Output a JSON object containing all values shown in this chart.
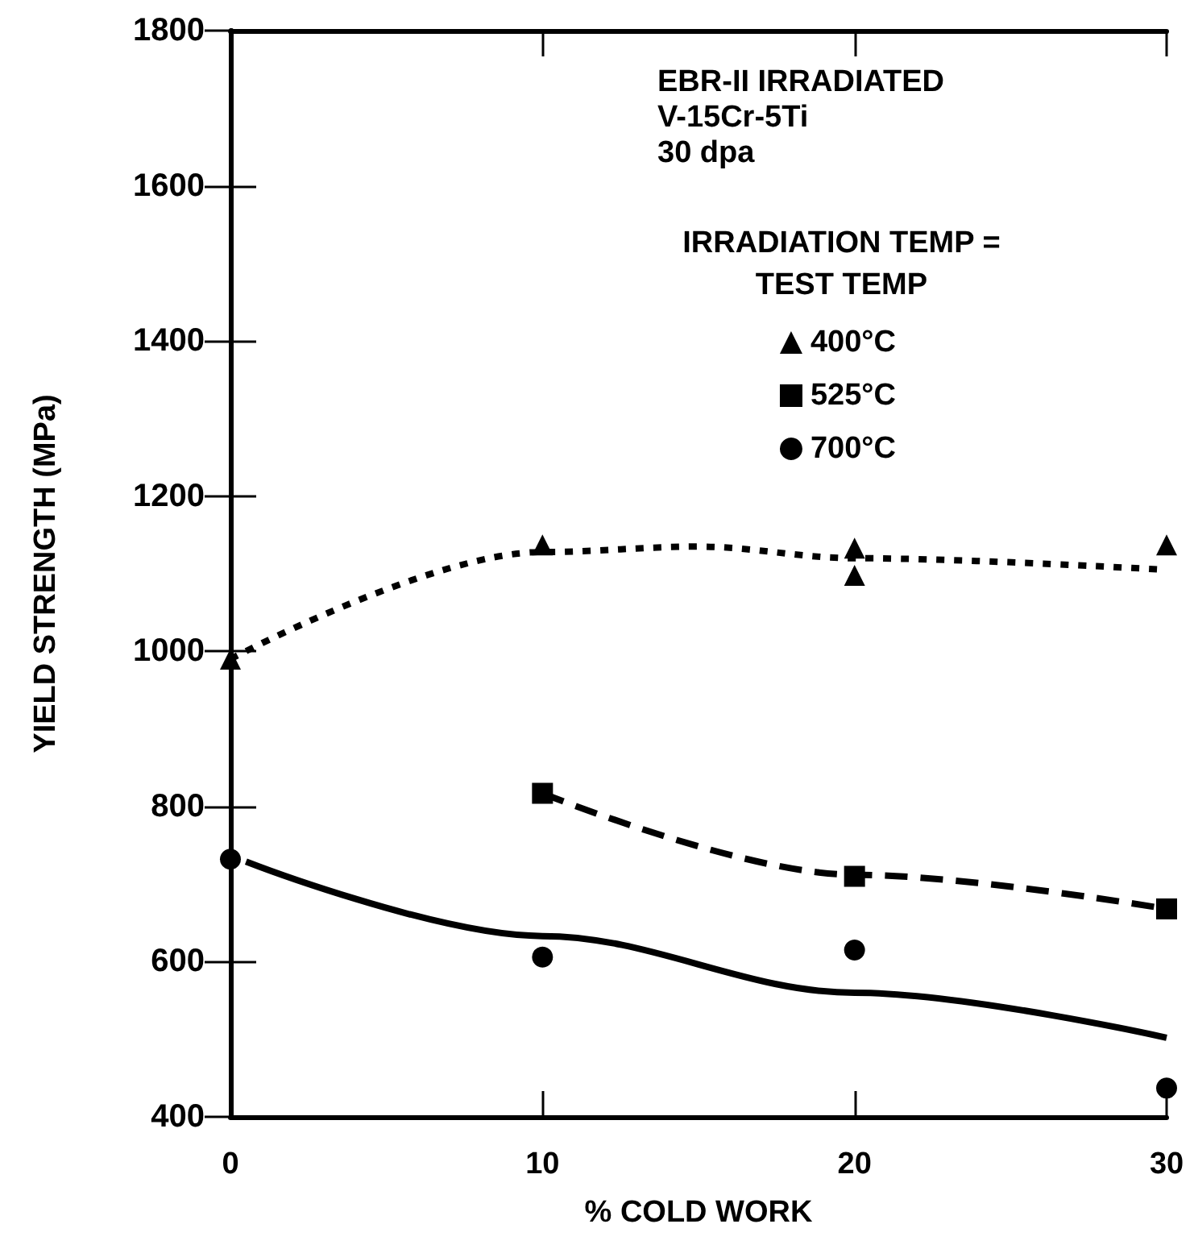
{
  "chart_data": {
    "type": "scatter",
    "xlabel": "% COLD WORK",
    "ylabel": "YIELD STRENGTH (MPa)",
    "legend_title": "IRRADIATION TEMP =\nTEST TEMP",
    "annotations": [
      "EBR-II IRRADIATED\nV-15Cr-5Ti\n30 dpa"
    ],
    "xlim": [
      0,
      30
    ],
    "ylim": [
      400,
      1800
    ],
    "xticks": [
      0,
      10,
      20,
      30
    ],
    "yticks": [
      400,
      600,
      800,
      1000,
      1200,
      1400,
      1600,
      1800
    ],
    "legend": "top right",
    "series": [
      {
        "name": "400°C",
        "marker": "triangle",
        "color": "#000000",
        "x": [
          0,
          10,
          20,
          20,
          30
        ],
        "values": [
          990,
          1137,
          1133,
          1098,
          1137
        ]
      },
      {
        "name": "525°C",
        "marker": "square",
        "color": "#000000",
        "x": [
          10,
          20,
          30
        ],
        "values": [
          817,
          710,
          668
        ]
      },
      {
        "name": "700°C",
        "marker": "circle",
        "color": "#000000",
        "x": [
          0,
          10,
          20,
          30
        ],
        "values": [
          732,
          606,
          615,
          437
        ]
      },
      {
        "type": "line",
        "marker": "none",
        "line_style": "dotted",
        "color": "#000000",
        "x": [
          0,
          10,
          15,
          20,
          30
        ],
        "values": [
          990,
          1128,
          1135,
          1120,
          1105
        ]
      },
      {
        "type": "line",
        "marker": "none",
        "line_style": "dashed",
        "color": "#000000",
        "x": [
          10,
          20,
          30
        ],
        "values": [
          817,
          712,
          668
        ]
      },
      {
        "type": "line",
        "marker": "none",
        "line_style": "solid",
        "color": "#000000",
        "x": [
          0.5,
          10,
          20,
          30
        ],
        "values": [
          729,
          633,
          560,
          502
        ]
      }
    ]
  }
}
